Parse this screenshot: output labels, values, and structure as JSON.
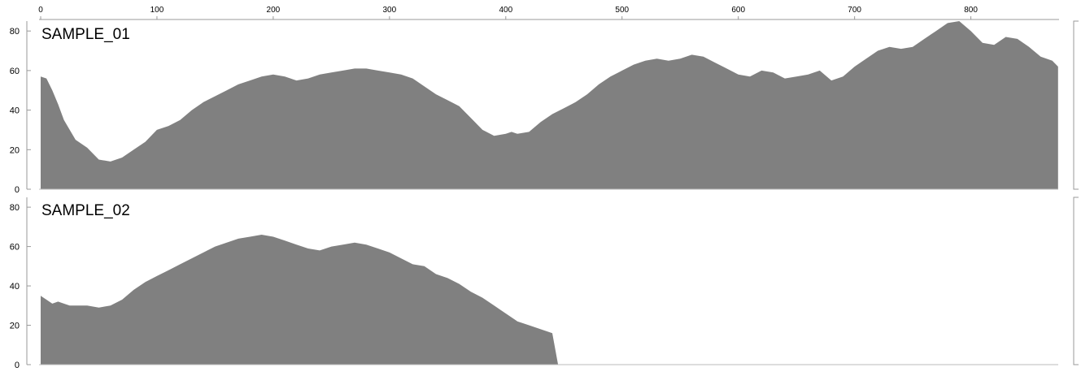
{
  "chart_data": {
    "type": "area",
    "x_axis": {
      "ticks": [
        0,
        100,
        200,
        300,
        400,
        500,
        600,
        700,
        800
      ],
      "tick_labels": [
        "0",
        "100",
        "200",
        "300",
        "400",
        "500",
        "600",
        "700",
        "800"
      ],
      "range": [
        0,
        880
      ]
    },
    "y_axis": {
      "ticks": [
        0,
        20,
        40,
        60,
        80
      ],
      "tick_labels": [
        "0",
        "20",
        "40",
        "60",
        "80"
      ],
      "range": [
        0,
        85
      ]
    },
    "grid": false,
    "fill_color": "#808080",
    "axis_color": "#999999",
    "series": [
      {
        "name": "SAMPLE_01",
        "x": [
          0,
          5,
          10,
          15,
          20,
          25,
          30,
          40,
          50,
          60,
          70,
          80,
          90,
          100,
          105,
          110,
          120,
          130,
          140,
          150,
          160,
          170,
          180,
          190,
          200,
          210,
          220,
          230,
          240,
          250,
          260,
          270,
          280,
          290,
          300,
          310,
          320,
          330,
          340,
          350,
          360,
          370,
          380,
          390,
          400,
          405,
          410,
          420,
          430,
          440,
          450,
          460,
          470,
          480,
          490,
          500,
          510,
          520,
          530,
          540,
          550,
          560,
          570,
          580,
          590,
          600,
          610,
          620,
          630,
          640,
          650,
          660,
          670,
          680,
          690,
          700,
          710,
          720,
          730,
          740,
          750,
          760,
          770,
          780,
          790,
          800,
          810,
          820,
          830,
          840,
          850,
          860,
          870,
          875
        ],
        "y": [
          57,
          56,
          50,
          43,
          35,
          30,
          25,
          21,
          15,
          14,
          16,
          20,
          24,
          30,
          31,
          32,
          35,
          40,
          44,
          47,
          50,
          53,
          55,
          57,
          58,
          57,
          55,
          56,
          58,
          59,
          60,
          61,
          61,
          60,
          59,
          58,
          56,
          52,
          48,
          45,
          42,
          36,
          30,
          27,
          28,
          29,
          28,
          29,
          34,
          38,
          41,
          44,
          48,
          53,
          57,
          60,
          63,
          65,
          66,
          65,
          66,
          68,
          67,
          64,
          61,
          58,
          57,
          60,
          59,
          56,
          57,
          58,
          60,
          55,
          57,
          62,
          66,
          70,
          72,
          71,
          72,
          76,
          80,
          84,
          85,
          80,
          74,
          73,
          77,
          76,
          72,
          67,
          65,
          62
        ]
      },
      {
        "name": "SAMPLE_02",
        "x": [
          0,
          5,
          10,
          15,
          20,
          25,
          30,
          40,
          50,
          60,
          70,
          80,
          90,
          100,
          110,
          120,
          130,
          140,
          150,
          160,
          170,
          180,
          190,
          200,
          210,
          220,
          230,
          240,
          250,
          260,
          270,
          280,
          290,
          300,
          310,
          320,
          330,
          340,
          350,
          360,
          370,
          380,
          390,
          400,
          410,
          420,
          430,
          440,
          445
        ],
        "y": [
          35,
          33,
          31,
          32,
          31,
          30,
          30,
          30,
          29,
          30,
          33,
          38,
          42,
          45,
          48,
          51,
          54,
          57,
          60,
          62,
          64,
          65,
          66,
          65,
          63,
          61,
          59,
          58,
          60,
          61,
          62,
          61,
          59,
          57,
          54,
          51,
          50,
          46,
          44,
          41,
          37,
          34,
          30,
          26,
          22,
          20,
          18,
          16,
          0
        ]
      }
    ]
  }
}
